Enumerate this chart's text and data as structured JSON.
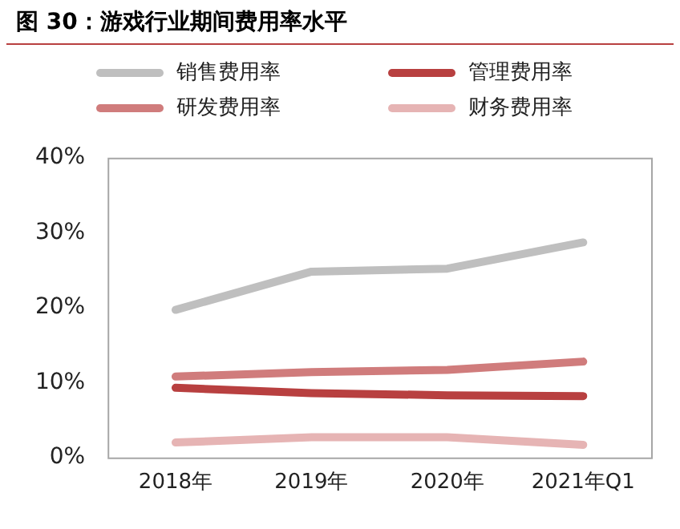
{
  "chart_data": {
    "type": "line",
    "title": "图 30：游戏行业期间费用率水平",
    "categories": [
      "2018年",
      "2019年",
      "2020年",
      "2021年Q1"
    ],
    "series": [
      {
        "name": "销售费用率",
        "color": "#bfbfbf",
        "values": [
          19.7,
          24.8,
          25.2,
          28.7
        ]
      },
      {
        "name": "管理费用率",
        "color": "#b84040",
        "values": [
          9.3,
          8.6,
          8.3,
          8.2
        ]
      },
      {
        "name": "研发费用率",
        "color": "#d07c7c",
        "values": [
          10.8,
          11.4,
          11.7,
          12.8
        ]
      },
      {
        "name": "财务费用率",
        "color": "#e6b4b4",
        "values": [
          2.0,
          2.7,
          2.7,
          1.7
        ]
      }
    ],
    "ylim": [
      0,
      40
    ],
    "yticks": [
      {
        "value": 0,
        "label": "0%"
      },
      {
        "value": 10,
        "label": "10%"
      },
      {
        "value": 20,
        "label": "20%"
      },
      {
        "value": 30,
        "label": "30%"
      },
      {
        "value": 40,
        "label": "40%"
      }
    ],
    "grid": false,
    "legend": "top",
    "marker": "none",
    "line_style": "solid"
  }
}
